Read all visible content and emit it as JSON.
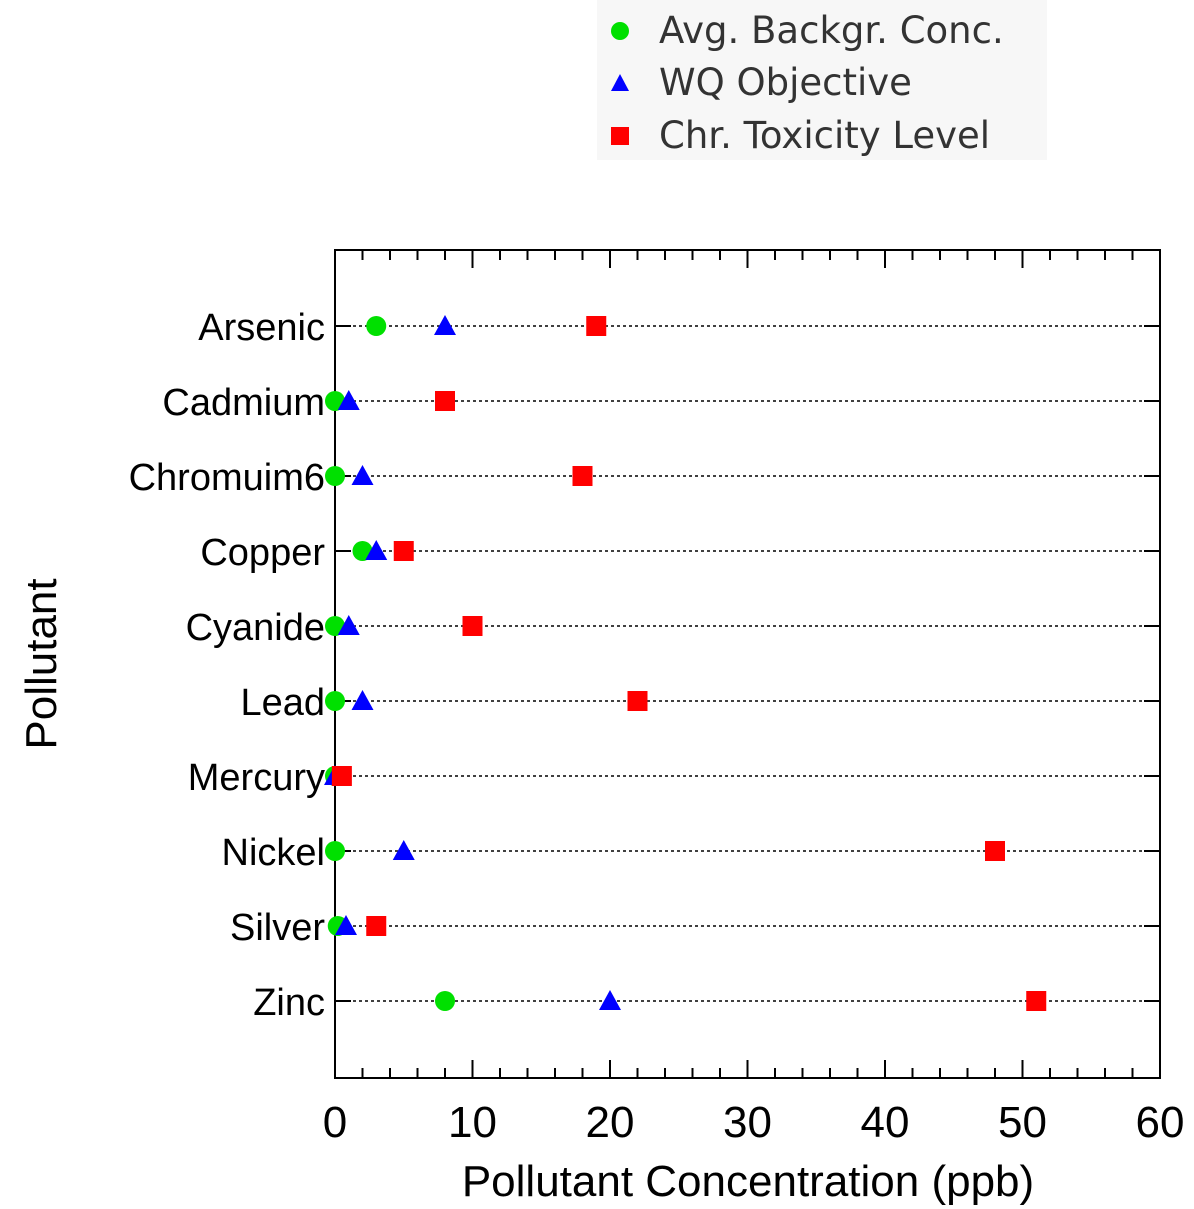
{
  "chart_data": {
    "type": "scatter",
    "orientation": "horizontal-dot-plot",
    "title": "",
    "xlabel": "Pollutant Concentration (ppb)",
    "ylabel": "Pollutant",
    "xlim": [
      0,
      60
    ],
    "x_ticks": [
      "0",
      "10",
      "20",
      "30",
      "40",
      "50",
      "60"
    ],
    "grid": "dotted horizontal reference lines per category",
    "legend_position": "top-right",
    "categories": [
      "Arsenic",
      "Cadmium",
      "Chromuim6",
      "Copper",
      "Cyanide",
      "Lead",
      "Mercury",
      "Nickel",
      "Silver",
      "Zinc"
    ],
    "series": [
      {
        "name": "Avg. Backgr. Conc.",
        "marker": "circle",
        "color": "#00e000",
        "values": [
          3,
          0,
          0,
          2,
          0,
          0,
          0,
          0,
          0.2,
          8
        ]
      },
      {
        "name": "WQ Objective",
        "marker": "triangle",
        "color": "#0000ff",
        "values": [
          8,
          1,
          2,
          3,
          1,
          2,
          0,
          5,
          0.8,
          20
        ]
      },
      {
        "name": "Chr. Toxicity Level",
        "marker": "square",
        "color": "#ff0000",
        "values": [
          19,
          8,
          18,
          5,
          10,
          22,
          0.5,
          48,
          3,
          51
        ]
      }
    ]
  }
}
